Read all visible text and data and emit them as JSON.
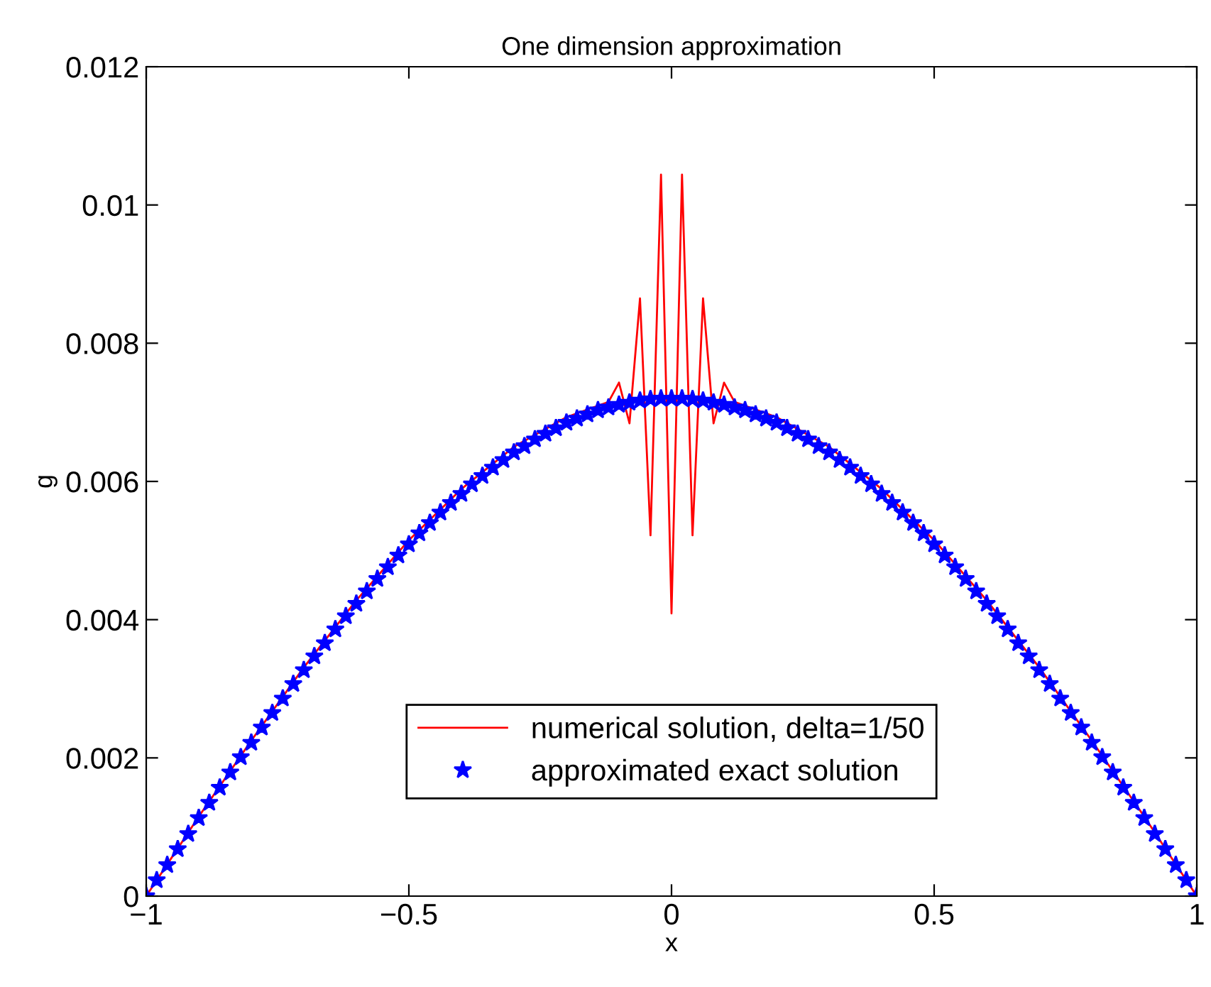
{
  "chart_data": {
    "type": "line",
    "title": "One dimension approximation",
    "xlabel": "x",
    "ylabel": "g",
    "xlim": [
      -1,
      1
    ],
    "ylim": [
      0,
      0.012
    ],
    "xticks": [
      {
        "value": -1,
        "label": "−1"
      },
      {
        "value": -0.5,
        "label": "−0.5"
      },
      0,
      0.5,
      1
    ],
    "yticks": [
      0,
      0.002,
      0.004,
      0.006,
      0.008,
      0.01,
      0.012
    ],
    "grid": false,
    "legend": "bottom",
    "series": [
      {
        "name": "numerical solution, delta=1/50",
        "color": "#ff0000",
        "marker": "none",
        "line_style": "solid",
        "x": [
          -1,
          -0.9,
          -0.8,
          -0.7,
          -0.6,
          -0.5,
          -0.4,
          -0.3,
          -0.2,
          -0.12,
          -0.1,
          -0.08,
          -0.06,
          -0.04,
          -0.02,
          0,
          0.02,
          0.04,
          0.06,
          0.08,
          0.1,
          0.12,
          0.2,
          0.3,
          0.4,
          0.5,
          0.6,
          0.7,
          0.8,
          0.9,
          1
        ],
        "values": [
          0,
          0.00115,
          0.00225,
          0.00331,
          0.00428,
          0.00515,
          0.00589,
          0.0065,
          0.00693,
          0.00715,
          0.00743,
          0.00684,
          0.00865,
          0.00522,
          0.01044,
          0.00409,
          0.01044,
          0.00522,
          0.00865,
          0.00684,
          0.00743,
          0.00715,
          0.00693,
          0.0065,
          0.00589,
          0.00515,
          0.00428,
          0.00331,
          0.00225,
          0.00115,
          0
        ]
      },
      {
        "name": "approximated exact solution",
        "type": "scatter",
        "color": "#0000ff",
        "marker": "star",
        "x": [
          -1,
          -0.98,
          -0.96,
          -0.94,
          -0.92,
          -0.9,
          -0.88,
          -0.86,
          -0.84,
          -0.82,
          -0.8,
          -0.78,
          -0.76,
          -0.74,
          -0.72,
          -0.7,
          -0.68,
          -0.66,
          -0.64,
          -0.62,
          -0.6,
          -0.58,
          -0.56,
          -0.54,
          -0.52,
          -0.5,
          -0.48,
          -0.46,
          -0.44,
          -0.42,
          -0.4,
          -0.38,
          -0.36,
          -0.34,
          -0.32,
          -0.3,
          -0.28,
          -0.26,
          -0.24,
          -0.22,
          -0.2,
          -0.18,
          -0.16,
          -0.14,
          -0.12,
          -0.1,
          -0.08,
          -0.06,
          -0.04,
          -0.02,
          0,
          0.02,
          0.04,
          0.06,
          0.08,
          0.1,
          0.12,
          0.14,
          0.16,
          0.18,
          0.2,
          0.22,
          0.24,
          0.26,
          0.28,
          0.3,
          0.32,
          0.34,
          0.36,
          0.38,
          0.4,
          0.42,
          0.44,
          0.46,
          0.48,
          0.5,
          0.52,
          0.54,
          0.56,
          0.58,
          0.6,
          0.62,
          0.64,
          0.66,
          0.68,
          0.7,
          0.72,
          0.74,
          0.76,
          0.78,
          0.8,
          0.82,
          0.84,
          0.86,
          0.88,
          0.9,
          0.92,
          0.94,
          0.96,
          0.98,
          1
        ],
        "values": [
          0,
          0.00023,
          0.00045,
          0.00068,
          0.0009,
          0.00113,
          0.00135,
          0.00157,
          0.00179,
          0.00201,
          0.00222,
          0.00244,
          0.00265,
          0.00286,
          0.00307,
          0.00327,
          0.00347,
          0.00366,
          0.00386,
          0.00405,
          0.00423,
          0.00441,
          0.00459,
          0.00476,
          0.00493,
          0.00509,
          0.00525,
          0.0054,
          0.00555,
          0.00569,
          0.00582,
          0.00596,
          0.00608,
          0.0062,
          0.00631,
          0.00642,
          0.00651,
          0.00661,
          0.00669,
          0.00677,
          0.00685,
          0.00691,
          0.00697,
          0.00703,
          0.00707,
          0.00711,
          0.00714,
          0.00717,
          0.00719,
          0.0072,
          0.0072,
          0.0072,
          0.00719,
          0.00717,
          0.00714,
          0.00711,
          0.00707,
          0.00703,
          0.00697,
          0.00691,
          0.00685,
          0.00677,
          0.00669,
          0.00661,
          0.00651,
          0.00642,
          0.00631,
          0.0062,
          0.00608,
          0.00596,
          0.00582,
          0.00569,
          0.00555,
          0.0054,
          0.00525,
          0.00509,
          0.00493,
          0.00476,
          0.00459,
          0.00441,
          0.00423,
          0.00405,
          0.00386,
          0.00366,
          0.00347,
          0.00327,
          0.00307,
          0.00286,
          0.00265,
          0.00244,
          0.00222,
          0.00201,
          0.00179,
          0.00157,
          0.00135,
          0.00113,
          0.0009,
          0.00068,
          0.00045,
          0.00023,
          0
        ]
      }
    ]
  }
}
